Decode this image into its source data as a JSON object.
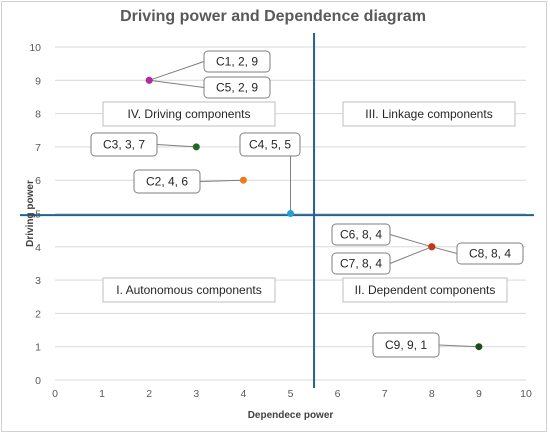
{
  "chart_data": {
    "type": "scatter",
    "title": "Driving power and Dependence diagram",
    "xlabel": "Dependece power",
    "ylabel": "Driving power",
    "xlim": [
      0,
      10
    ],
    "ylim": [
      0,
      10
    ],
    "x_ticks": [
      "0",
      "1",
      "2",
      "3",
      "4",
      "5",
      "6",
      "7",
      "8",
      "9",
      "10"
    ],
    "y_ticks": [
      "0",
      "1",
      "2",
      "3",
      "4",
      "5",
      "6",
      "7",
      "8",
      "9",
      "10"
    ],
    "grid": "horizontal",
    "divider_x": 5.5,
    "divider_y": 4.95,
    "points": [
      {
        "label": "C1, 2, 9",
        "x": 2,
        "y": 9,
        "color": "#b02aa0"
      },
      {
        "label": "C5, 2, 9",
        "x": 2,
        "y": 9,
        "color": "#b02aa0"
      },
      {
        "label": "C3, 3, 7",
        "x": 3,
        "y": 7,
        "color": "#1e6b23"
      },
      {
        "label": "C2, 4, 6",
        "x": 4,
        "y": 6,
        "color": "#f07a1a"
      },
      {
        "label": "C4, 5, 5",
        "x": 5,
        "y": 5,
        "color": "#1ca3d9"
      },
      {
        "label": "C6, 8, 4",
        "x": 8,
        "y": 4,
        "color": "#c0391b"
      },
      {
        "label": "C7, 8, 4",
        "x": 8,
        "y": 4,
        "color": "#c0391b"
      },
      {
        "label": "C8, 8, 4",
        "x": 8,
        "y": 4,
        "color": "#c0391b"
      },
      {
        "label": "C9, 9, 1",
        "x": 9,
        "y": 1,
        "color": "#1e4d1a"
      }
    ],
    "zones": [
      {
        "label": "IV. Driving components"
      },
      {
        "label": "III. Linkage components"
      },
      {
        "label": "I. Autonomous components"
      },
      {
        "label": "II. Dependent components"
      }
    ]
  },
  "colors": {
    "divider": "#1f6491",
    "grid": "#d9d9d9",
    "text": "#595959"
  }
}
